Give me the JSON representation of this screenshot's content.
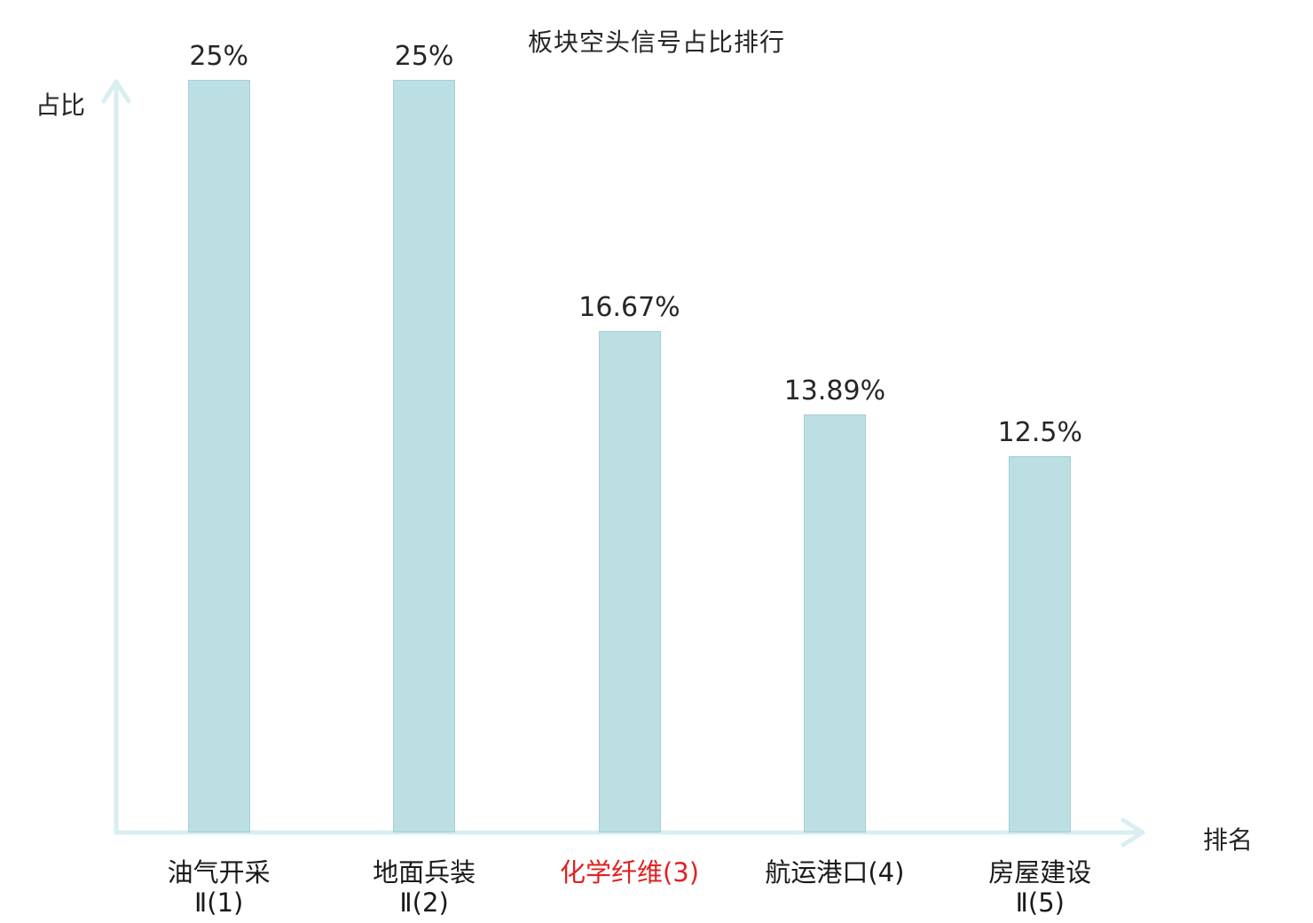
{
  "title": "板块空头信号占比排行",
  "ylabel": "占比",
  "xlabel": "排名",
  "chart_data": {
    "type": "bar",
    "title": "板块空头信号占比排行",
    "xlabel": "排名",
    "ylabel": "占比",
    "categories": [
      "油气开采Ⅱ(1)",
      "地面兵装Ⅱ(2)",
      "化学纤维(3)",
      "航运港口(4)",
      "房屋建设Ⅱ(5)"
    ],
    "category_lines": [
      [
        "油气开采",
        "Ⅱ(1)"
      ],
      [
        "地面兵装",
        "Ⅱ(2)"
      ],
      [
        "化学纤维(3)",
        ""
      ],
      [
        "航运港口(4)",
        ""
      ],
      [
        "房屋建设",
        "Ⅱ(5)"
      ]
    ],
    "values": [
      25,
      25,
      16.67,
      13.89,
      12.5
    ],
    "value_labels": [
      "25%",
      "25%",
      "16.67%",
      "13.89%",
      "12.5%"
    ],
    "highlight_index": 2,
    "ylim": [
      0,
      25
    ],
    "grid": false,
    "legend": "none",
    "bar_color": "#bcdfe4",
    "bar_border_color": "#a6ced4",
    "axis_color": "#d9eef0",
    "highlight_color": "#e02222",
    "text_color": "#262626"
  }
}
